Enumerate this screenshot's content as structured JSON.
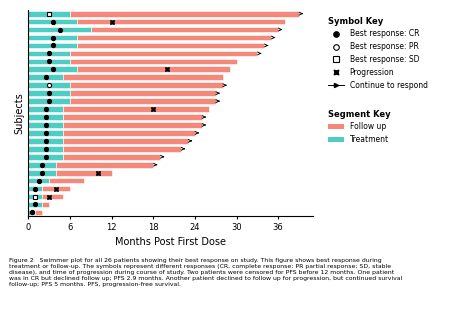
{
  "chart_data": {
    "type": "swimmer",
    "orientation": "horizontal",
    "stacked": true,
    "tick_labels": "x",
    "legend": "upper left",
    "xlabel": "Months Post First Dose",
    "ylabel": "Subjects",
    "xlim": [
      0,
      41
    ],
    "xticks": [
      0,
      6,
      12,
      18,
      24,
      30,
      36
    ],
    "categories": [
      null,
      null,
      null,
      null,
      null,
      null,
      null,
      null,
      null,
      null,
      null,
      null,
      null,
      null,
      null,
      null,
      null,
      null,
      null,
      null,
      null,
      null,
      null,
      null,
      null,
      null
    ],
    "series": [
      {
        "name": "Treatment",
        "color": "#4ecdc4",
        "values": [
          6,
          7,
          9,
          7,
          7,
          6,
          6,
          7,
          5,
          6,
          6,
          6,
          5,
          5,
          5,
          5,
          5,
          5,
          5,
          4,
          4,
          3,
          2,
          2,
          2,
          1
        ]
      },
      {
        "name": "Follow up",
        "color": "#f4897b",
        "values": [
          33,
          30,
          27,
          28,
          27,
          27,
          24,
          22,
          23,
          22,
          21,
          21,
          21,
          20,
          20,
          19,
          18,
          17,
          14,
          14,
          8,
          5,
          4,
          3,
          1,
          1
        ]
      }
    ],
    "best_response": {
      "codes": [
        "SD",
        "CR",
        "CR",
        "CR",
        "CR",
        "CR",
        "CR",
        "CR",
        "CR",
        "PR",
        "CR",
        "CR",
        "CR",
        "CR",
        "CR",
        "CR",
        "CR",
        "CR",
        "CR",
        "CR",
        "CR",
        "CR",
        "CR",
        "SD",
        "CR",
        "CR"
      ],
      "entries": [
        {
          "code": "CR",
          "name": "Best response: CR"
        },
        {
          "code": "PR",
          "name": "Best response: PR"
        },
        {
          "code": "SD",
          "name": "Best response: SD"
        }
      ]
    },
    "progression": {
      "name": "Progression",
      "values": [
        null,
        12,
        null,
        null,
        null,
        null,
        null,
        20,
        null,
        null,
        null,
        null,
        18,
        null,
        null,
        null,
        null,
        null,
        null,
        null,
        10,
        null,
        4,
        3,
        null,
        null
      ]
    },
    "continue": {
      "name": "Continue to respond",
      "values": [
        true,
        false,
        true,
        true,
        true,
        true,
        false,
        false,
        false,
        true,
        true,
        true,
        false,
        true,
        true,
        true,
        true,
        true,
        true,
        true,
        false,
        false,
        false,
        false,
        false,
        false
      ]
    },
    "symbol_key_title": "Symbol Key",
    "segment_key_title": "Segment Key",
    "caption": "Figure 2   Swimmer plot for all 26 patients showing their best response on study. This figure shows best response during\ntreatment or follow-up. The symbols represent different responses (CR, complete response; PR partial response; SD, stable\ndisease), and time of progression during course of study. Two patients were censored for PFS before 12 months. One patient\nwas in CR but declined follow up; PFS 2.9 months. Another patient declined to follow up for progression, but continued survival\nfollow-up; PFS 5 months. PFS, progression-free survival."
  }
}
